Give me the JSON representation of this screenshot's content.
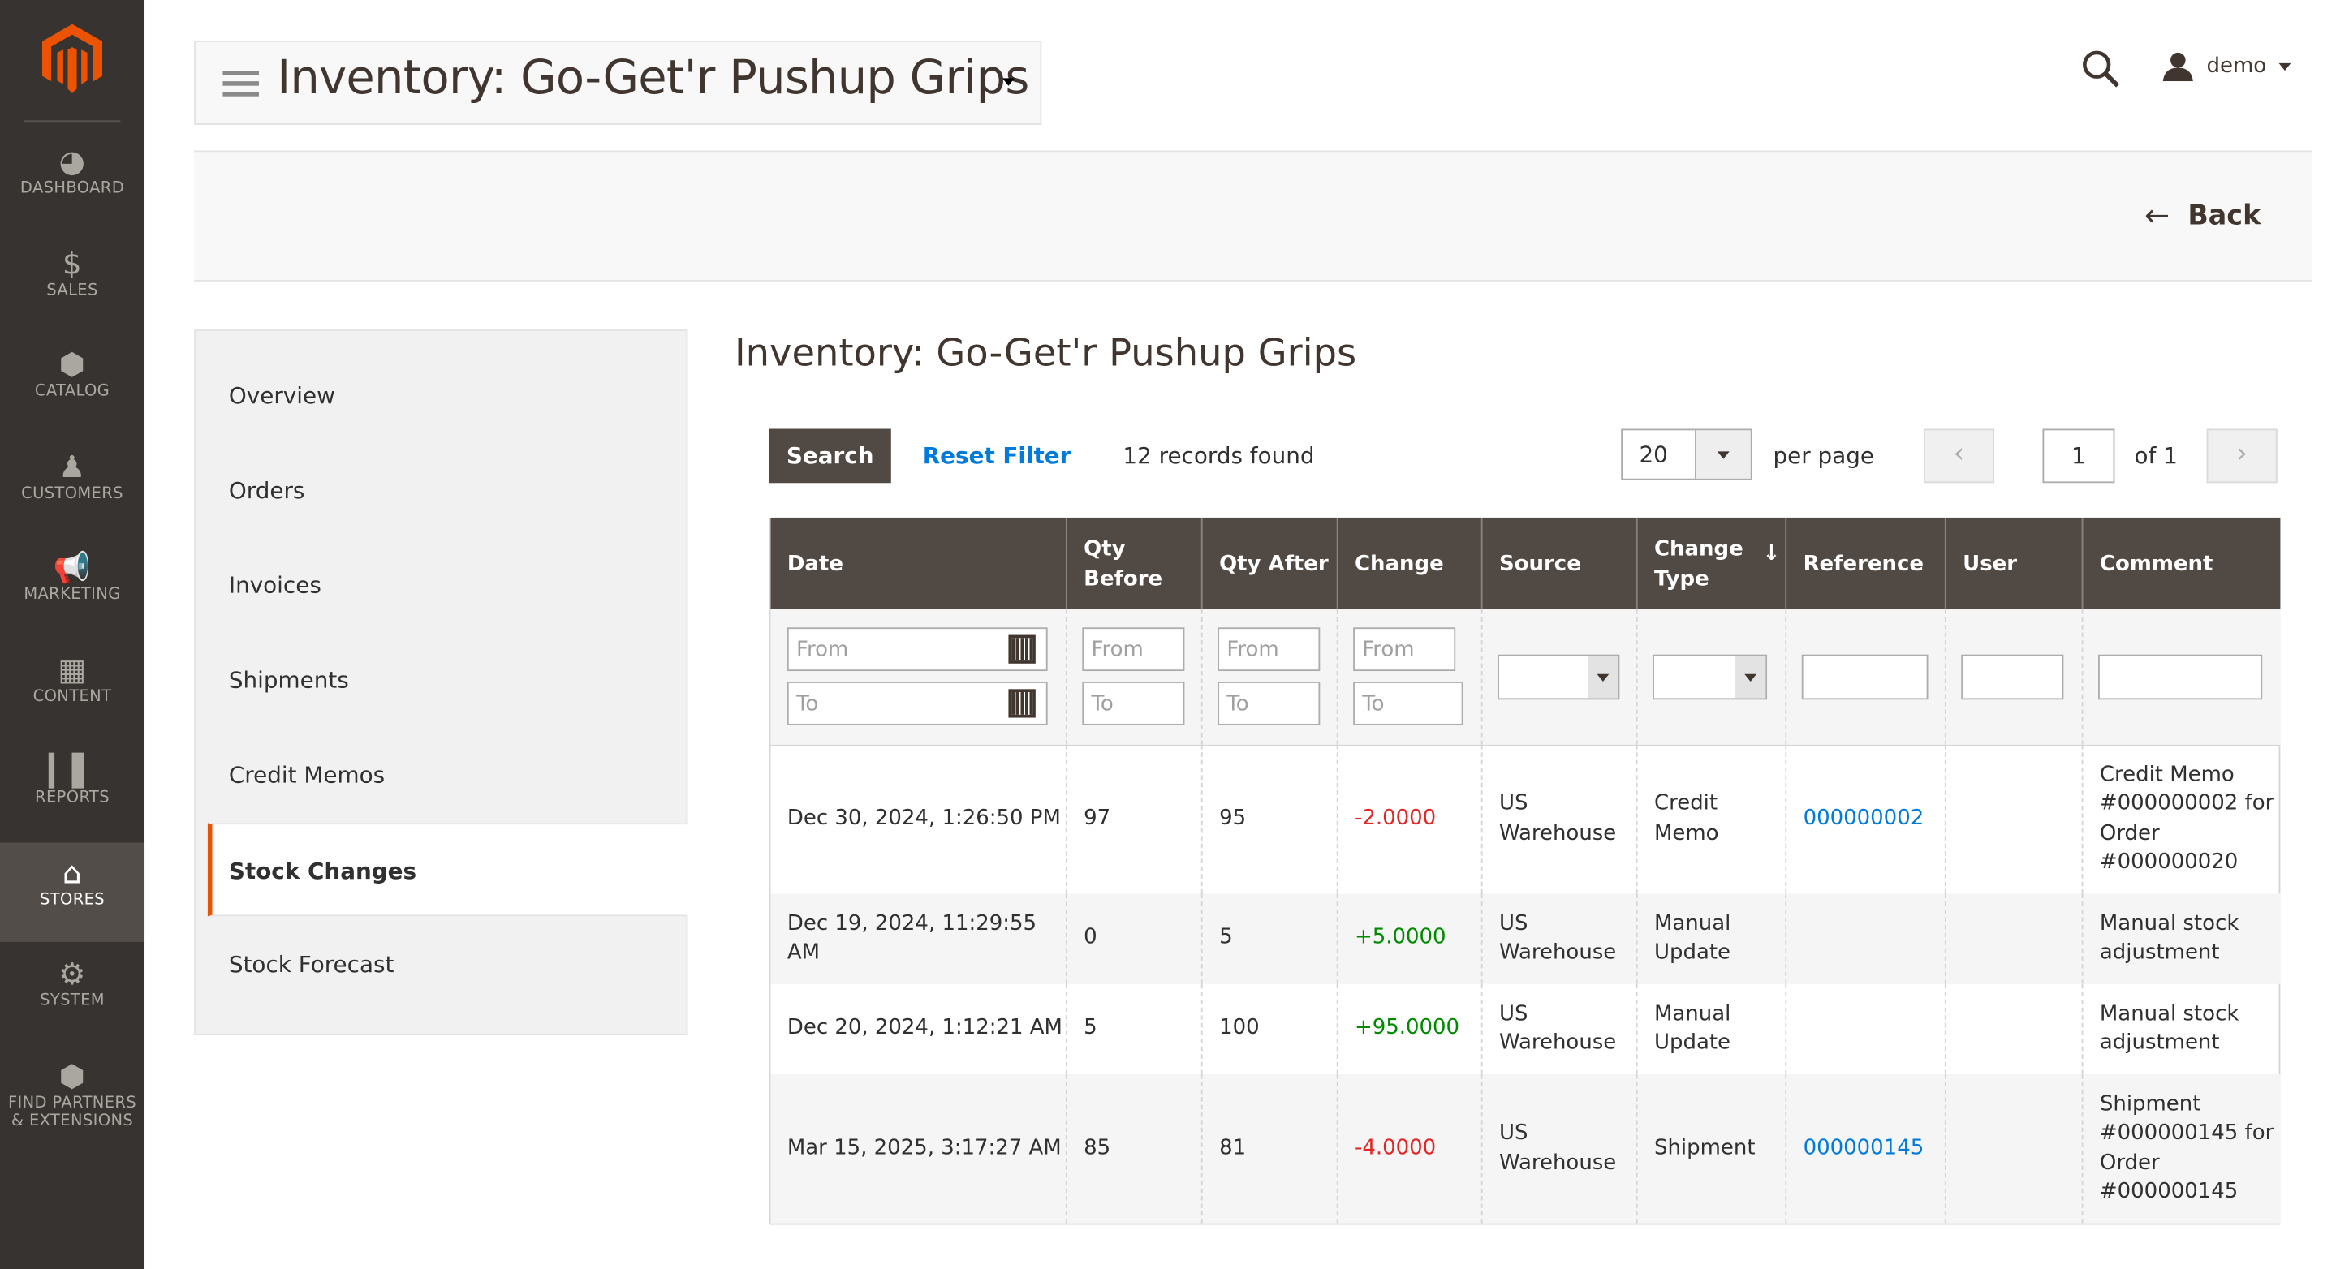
{
  "nav": [
    {
      "label": "DASHBOARD",
      "icon": "dashboard-icon"
    },
    {
      "label": "SALES",
      "icon": "dollar-icon"
    },
    {
      "label": "CATALOG",
      "icon": "box-icon"
    },
    {
      "label": "CUSTOMERS",
      "icon": "person-icon"
    },
    {
      "label": "MARKETING",
      "icon": "megaphone-icon"
    },
    {
      "label": "CONTENT",
      "icon": "layout-icon"
    },
    {
      "label": "REPORTS",
      "icon": "bar-chart-icon"
    },
    {
      "label": "STORES",
      "icon": "store-icon",
      "active": true
    },
    {
      "label": "SYSTEM",
      "icon": "gear-icon"
    },
    {
      "label": "FIND PARTNERS",
      "label2": "& EXTENSIONS",
      "icon": "cubes-icon"
    }
  ],
  "header": {
    "title": "Inventory: Go-Get'r Pushup Grips",
    "user": "demo"
  },
  "actions": {
    "back": "Back"
  },
  "tabs": [
    "Overview",
    "Orders",
    "Invoices",
    "Shipments",
    "Credit Memos",
    "Stock Changes",
    "Stock Forecast"
  ],
  "active_tab": "Stock Changes",
  "content": {
    "title": "Inventory: Go-Get'r Pushup Grips",
    "search": "Search",
    "reset": "Reset Filter",
    "records": "12 records found",
    "per_page_value": "20",
    "per_page": "per page",
    "page": "1",
    "of": "of 1"
  },
  "grid": {
    "columns": [
      "Date",
      "Qty Before",
      "Qty After",
      "Change",
      "Source",
      "Change Type",
      "Reference",
      "User",
      "Comment"
    ],
    "filters": {
      "from": "From",
      "to": "To"
    },
    "rows": [
      {
        "date": "Dec 30, 2024, 1:26:50 PM",
        "before": "97",
        "after": "95",
        "change": "-2.0000",
        "source": "US Warehouse",
        "type": "Credit Memo",
        "ref": "000000002",
        "user": "",
        "comment": "Credit Memo #000000002 for Order #000000020"
      },
      {
        "date": "Dec 19, 2024, 11:29:55 AM",
        "before": "0",
        "after": "5",
        "change": "+5.0000",
        "source": "US Warehouse",
        "type": "Manual Update",
        "ref": "",
        "user": "",
        "comment": "Manual stock adjustment"
      },
      {
        "date": "Dec 20, 2024, 1:12:21 AM",
        "before": "5",
        "after": "100",
        "change": "+95.0000",
        "source": "US Warehouse",
        "type": "Manual Update",
        "ref": "",
        "user": "",
        "comment": "Manual stock adjustment"
      },
      {
        "date": "Mar 15, 2025, 3:17:27 AM",
        "before": "85",
        "after": "81",
        "change": "-4.0000",
        "source": "US Warehouse",
        "type": "Shipment",
        "ref": "000000145",
        "user": "",
        "comment": "Shipment #000000145 for Order #000000145"
      }
    ]
  },
  "colors": {
    "sidebar": "#373330",
    "accent": "#eb5202",
    "header": "#514943",
    "link": "#007bdb"
  }
}
